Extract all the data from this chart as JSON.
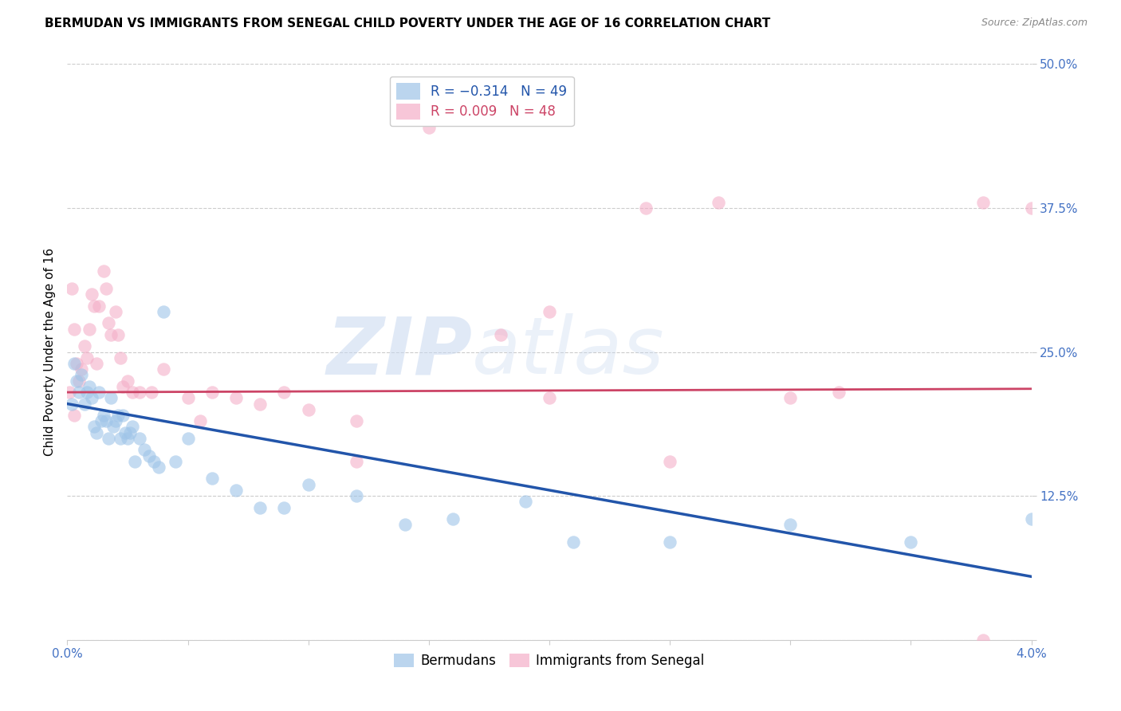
{
  "title": "BERMUDAN VS IMMIGRANTS FROM SENEGAL CHILD POVERTY UNDER THE AGE OF 16 CORRELATION CHART",
  "source": "Source: ZipAtlas.com",
  "ylabel": "Child Poverty Under the Age of 16",
  "xlim": [
    0.0,
    0.04
  ],
  "ylim": [
    0.0,
    0.5
  ],
  "xticks": [
    0.0,
    0.005,
    0.01,
    0.015,
    0.02,
    0.025,
    0.03,
    0.035,
    0.04
  ],
  "xtick_labels_show": [
    "0.0%",
    "",
    "",
    "",
    "",
    "",
    "",
    "",
    "4.0%"
  ],
  "yticks": [
    0.0,
    0.125,
    0.25,
    0.375,
    0.5
  ],
  "ytick_labels": [
    "",
    "12.5%",
    "25.0%",
    "37.5%",
    "50.0%"
  ],
  "blue_color": "#9ec4e8",
  "pink_color": "#f4afc8",
  "blue_line_color": "#2255aa",
  "pink_line_color": "#cc4466",
  "watermark_zip": "ZIP",
  "watermark_atlas": "atlas",
  "background_color": "#ffffff",
  "grid_color": "#cccccc",
  "tick_label_color": "#4472c4",
  "marker_size": 140,
  "blue_scatter_x": [
    0.0002,
    0.0003,
    0.0004,
    0.0005,
    0.0006,
    0.0007,
    0.0008,
    0.0009,
    0.001,
    0.0011,
    0.0012,
    0.0013,
    0.0014,
    0.0015,
    0.0016,
    0.0017,
    0.0018,
    0.0019,
    0.002,
    0.0021,
    0.0022,
    0.0023,
    0.0024,
    0.0025,
    0.0026,
    0.0027,
    0.0028,
    0.003,
    0.0032,
    0.0034,
    0.0036,
    0.0038,
    0.004,
    0.0045,
    0.005,
    0.006,
    0.007,
    0.008,
    0.009,
    0.01,
    0.012,
    0.014,
    0.016,
    0.019,
    0.021,
    0.025,
    0.03,
    0.035,
    0.04
  ],
  "blue_scatter_y": [
    0.205,
    0.24,
    0.225,
    0.215,
    0.23,
    0.205,
    0.215,
    0.22,
    0.21,
    0.185,
    0.18,
    0.215,
    0.19,
    0.195,
    0.19,
    0.175,
    0.21,
    0.185,
    0.19,
    0.195,
    0.175,
    0.195,
    0.18,
    0.175,
    0.18,
    0.185,
    0.155,
    0.175,
    0.165,
    0.16,
    0.155,
    0.15,
    0.285,
    0.155,
    0.175,
    0.14,
    0.13,
    0.115,
    0.115,
    0.135,
    0.125,
    0.1,
    0.105,
    0.12,
    0.085,
    0.085,
    0.1,
    0.085,
    0.105
  ],
  "pink_scatter_x": [
    0.0001,
    0.0002,
    0.0003,
    0.0004,
    0.0005,
    0.0006,
    0.0007,
    0.0008,
    0.0009,
    0.001,
    0.0011,
    0.0012,
    0.0013,
    0.0015,
    0.0016,
    0.0017,
    0.0018,
    0.002,
    0.0021,
    0.0022,
    0.0023,
    0.0025,
    0.0027,
    0.003,
    0.0035,
    0.004,
    0.005,
    0.006,
    0.007,
    0.008,
    0.009,
    0.01,
    0.012,
    0.015,
    0.018,
    0.02,
    0.024,
    0.027,
    0.03,
    0.032,
    0.038,
    0.04,
    0.0003,
    0.0055,
    0.012,
    0.02,
    0.025,
    0.038
  ],
  "pink_scatter_y": [
    0.215,
    0.305,
    0.27,
    0.24,
    0.225,
    0.235,
    0.255,
    0.245,
    0.27,
    0.3,
    0.29,
    0.24,
    0.29,
    0.32,
    0.305,
    0.275,
    0.265,
    0.285,
    0.265,
    0.245,
    0.22,
    0.225,
    0.215,
    0.215,
    0.215,
    0.235,
    0.21,
    0.215,
    0.21,
    0.205,
    0.215,
    0.2,
    0.19,
    0.445,
    0.265,
    0.285,
    0.375,
    0.38,
    0.21,
    0.215,
    0.38,
    0.375,
    0.195,
    0.19,
    0.155,
    0.21,
    0.155,
    0.0
  ],
  "blue_line_x0": 0.0,
  "blue_line_y0": 0.205,
  "blue_line_x1": 0.04,
  "blue_line_y1": 0.055,
  "pink_line_x0": 0.0,
  "pink_line_y0": 0.215,
  "pink_line_x1": 0.04,
  "pink_line_y1": 0.218
}
